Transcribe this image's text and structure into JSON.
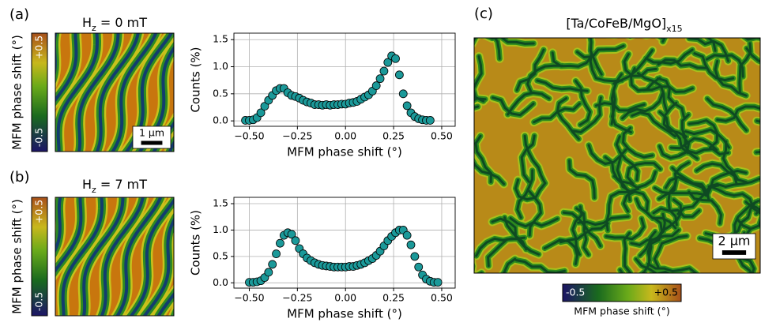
{
  "panels": [
    {
      "label": "(a)",
      "title": {
        "main": "H",
        "sub": "z",
        "rest": " = 0 mT"
      },
      "colorbar": {
        "label": "MFM phase shift (°)",
        "max": "+0.5",
        "min": "-0.5"
      },
      "scalebar": "1 µm"
    },
    {
      "label": "(b)",
      "title": {
        "main": "H",
        "sub": "z",
        "rest": " = 7 mT"
      },
      "colorbar": {
        "label": "MFM phase shift (°)",
        "max": "+0.5",
        "min": "-0.5"
      },
      "scalebar": ""
    },
    {
      "label": "(c)",
      "title": {
        "main": "[Ta/CoFeB/MgO]",
        "sub": "x15"
      },
      "colorbar": {
        "label": "MFM phase shift (°)",
        "max": "+0.5",
        "min": "-0.5"
      },
      "scalebar": "2 µm"
    }
  ],
  "chart_data": [
    {
      "type": "scatter",
      "xlabel": "MFM phase shift (°)",
      "ylabel": "Counts (%)",
      "color": "#1b9999",
      "grid": true,
      "xlim": [
        -0.58,
        0.57
      ],
      "ylim": [
        -0.1,
        1.62
      ],
      "xticks": [
        {
          "value": -0.5,
          "label": "−0.50"
        },
        {
          "value": -0.25,
          "label": "−0.25"
        },
        {
          "value": 0,
          "label": "0.00"
        },
        {
          "value": 0.25,
          "label": "0.25"
        },
        {
          "value": 0.5,
          "label": "0.50"
        }
      ],
      "yticks": [
        {
          "value": 0,
          "label": "0.0"
        },
        {
          "value": 0.5,
          "label": "0.5"
        },
        {
          "value": 1,
          "label": "1.0"
        },
        {
          "value": 1.5,
          "label": "1.5"
        }
      ],
      "x": [
        -0.52,
        -0.5,
        -0.48,
        -0.46,
        -0.44,
        -0.42,
        -0.4,
        -0.38,
        -0.36,
        -0.34,
        -0.32,
        -0.3,
        -0.28,
        -0.26,
        -0.24,
        -0.22,
        -0.2,
        -0.18,
        -0.16,
        -0.14,
        -0.12,
        -0.1,
        -0.08,
        -0.06,
        -0.04,
        -0.02,
        0,
        0.02,
        0.04,
        0.06,
        0.08,
        0.1,
        0.12,
        0.14,
        0.16,
        0.18,
        0.2,
        0.22,
        0.24,
        0.26,
        0.28,
        0.3,
        0.32,
        0.34,
        0.36,
        0.38,
        0.4,
        0.42,
        0.44
      ],
      "values": [
        0.01,
        0.01,
        0.02,
        0.06,
        0.15,
        0.27,
        0.38,
        0.47,
        0.56,
        0.6,
        0.6,
        0.52,
        0.47,
        0.45,
        0.42,
        0.38,
        0.35,
        0.33,
        0.3,
        0.3,
        0.29,
        0.3,
        0.29,
        0.3,
        0.3,
        0.31,
        0.31,
        0.33,
        0.34,
        0.36,
        0.4,
        0.44,
        0.48,
        0.55,
        0.65,
        0.78,
        0.92,
        1.08,
        1.2,
        1.15,
        0.85,
        0.5,
        0.28,
        0.15,
        0.08,
        0.04,
        0.02,
        0.01,
        0.01
      ]
    },
    {
      "type": "scatter",
      "xlabel": "MFM phase shift (°)",
      "ylabel": "Counts (%)",
      "color": "#1b9999",
      "grid": true,
      "xlim": [
        -0.58,
        0.57
      ],
      "ylim": [
        -0.1,
        1.62
      ],
      "xticks": [
        {
          "value": -0.5,
          "label": "−0.50"
        },
        {
          "value": -0.25,
          "label": "−0.25"
        },
        {
          "value": 0,
          "label": "0.00"
        },
        {
          "value": 0.25,
          "label": "0.25"
        },
        {
          "value": 0.5,
          "label": "0.50"
        }
      ],
      "yticks": [
        {
          "value": 0,
          "label": "0.0"
        },
        {
          "value": 0.5,
          "label": "0.5"
        },
        {
          "value": 1,
          "label": "1.0"
        },
        {
          "value": 1.5,
          "label": "1.5"
        }
      ],
      "x": [
        -0.5,
        -0.48,
        -0.46,
        -0.44,
        -0.42,
        -0.4,
        -0.38,
        -0.36,
        -0.34,
        -0.32,
        -0.3,
        -0.28,
        -0.26,
        -0.24,
        -0.22,
        -0.2,
        -0.18,
        -0.16,
        -0.14,
        -0.12,
        -0.1,
        -0.08,
        -0.06,
        -0.04,
        -0.02,
        0,
        0.02,
        0.04,
        0.06,
        0.08,
        0.1,
        0.12,
        0.14,
        0.16,
        0.18,
        0.2,
        0.22,
        0.24,
        0.26,
        0.28,
        0.3,
        0.32,
        0.34,
        0.36,
        0.38,
        0.4,
        0.42,
        0.44,
        0.46,
        0.48
      ],
      "values": [
        0.01,
        0.01,
        0.02,
        0.04,
        0.1,
        0.2,
        0.35,
        0.55,
        0.75,
        0.9,
        0.95,
        0.92,
        0.8,
        0.65,
        0.55,
        0.47,
        0.42,
        0.38,
        0.35,
        0.33,
        0.32,
        0.31,
        0.3,
        0.3,
        0.3,
        0.3,
        0.31,
        0.31,
        0.33,
        0.35,
        0.38,
        0.42,
        0.46,
        0.52,
        0.6,
        0.7,
        0.8,
        0.88,
        0.95,
        1.0,
        1.0,
        0.9,
        0.72,
        0.5,
        0.3,
        0.15,
        0.07,
        0.03,
        0.01,
        0.01
      ]
    }
  ]
}
